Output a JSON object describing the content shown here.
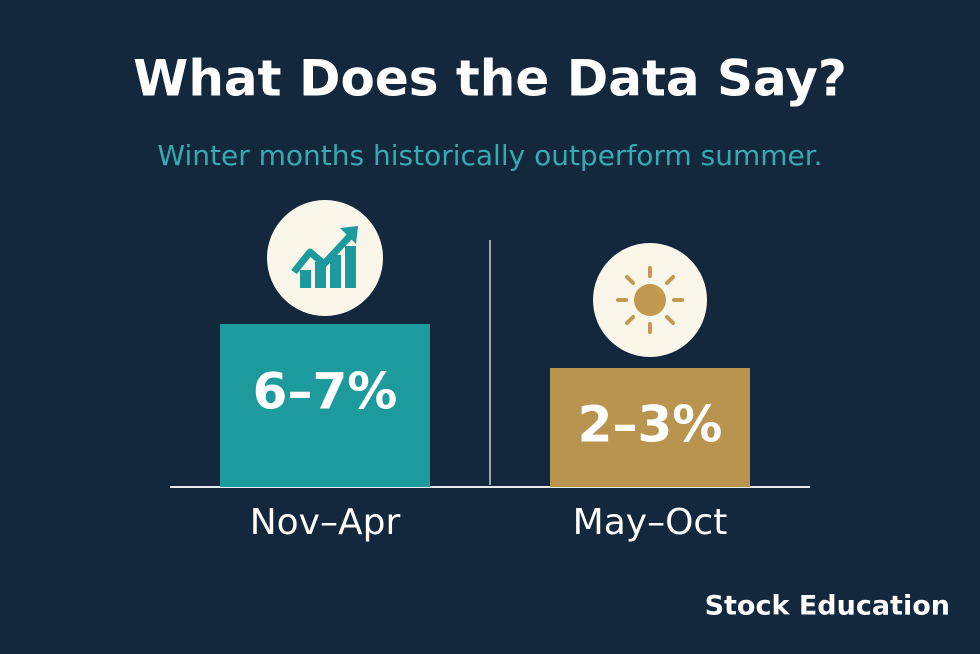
{
  "header": {
    "title": "What Does the Data Say?",
    "subtitle": "Winter months historically outperform summer."
  },
  "panels": [
    {
      "value_label": "6–7%",
      "period": "Nov–Apr"
    },
    {
      "value_label": "2–3%",
      "period": "May–Oct"
    }
  ],
  "footer": {
    "brand": "Stock Education"
  }
}
